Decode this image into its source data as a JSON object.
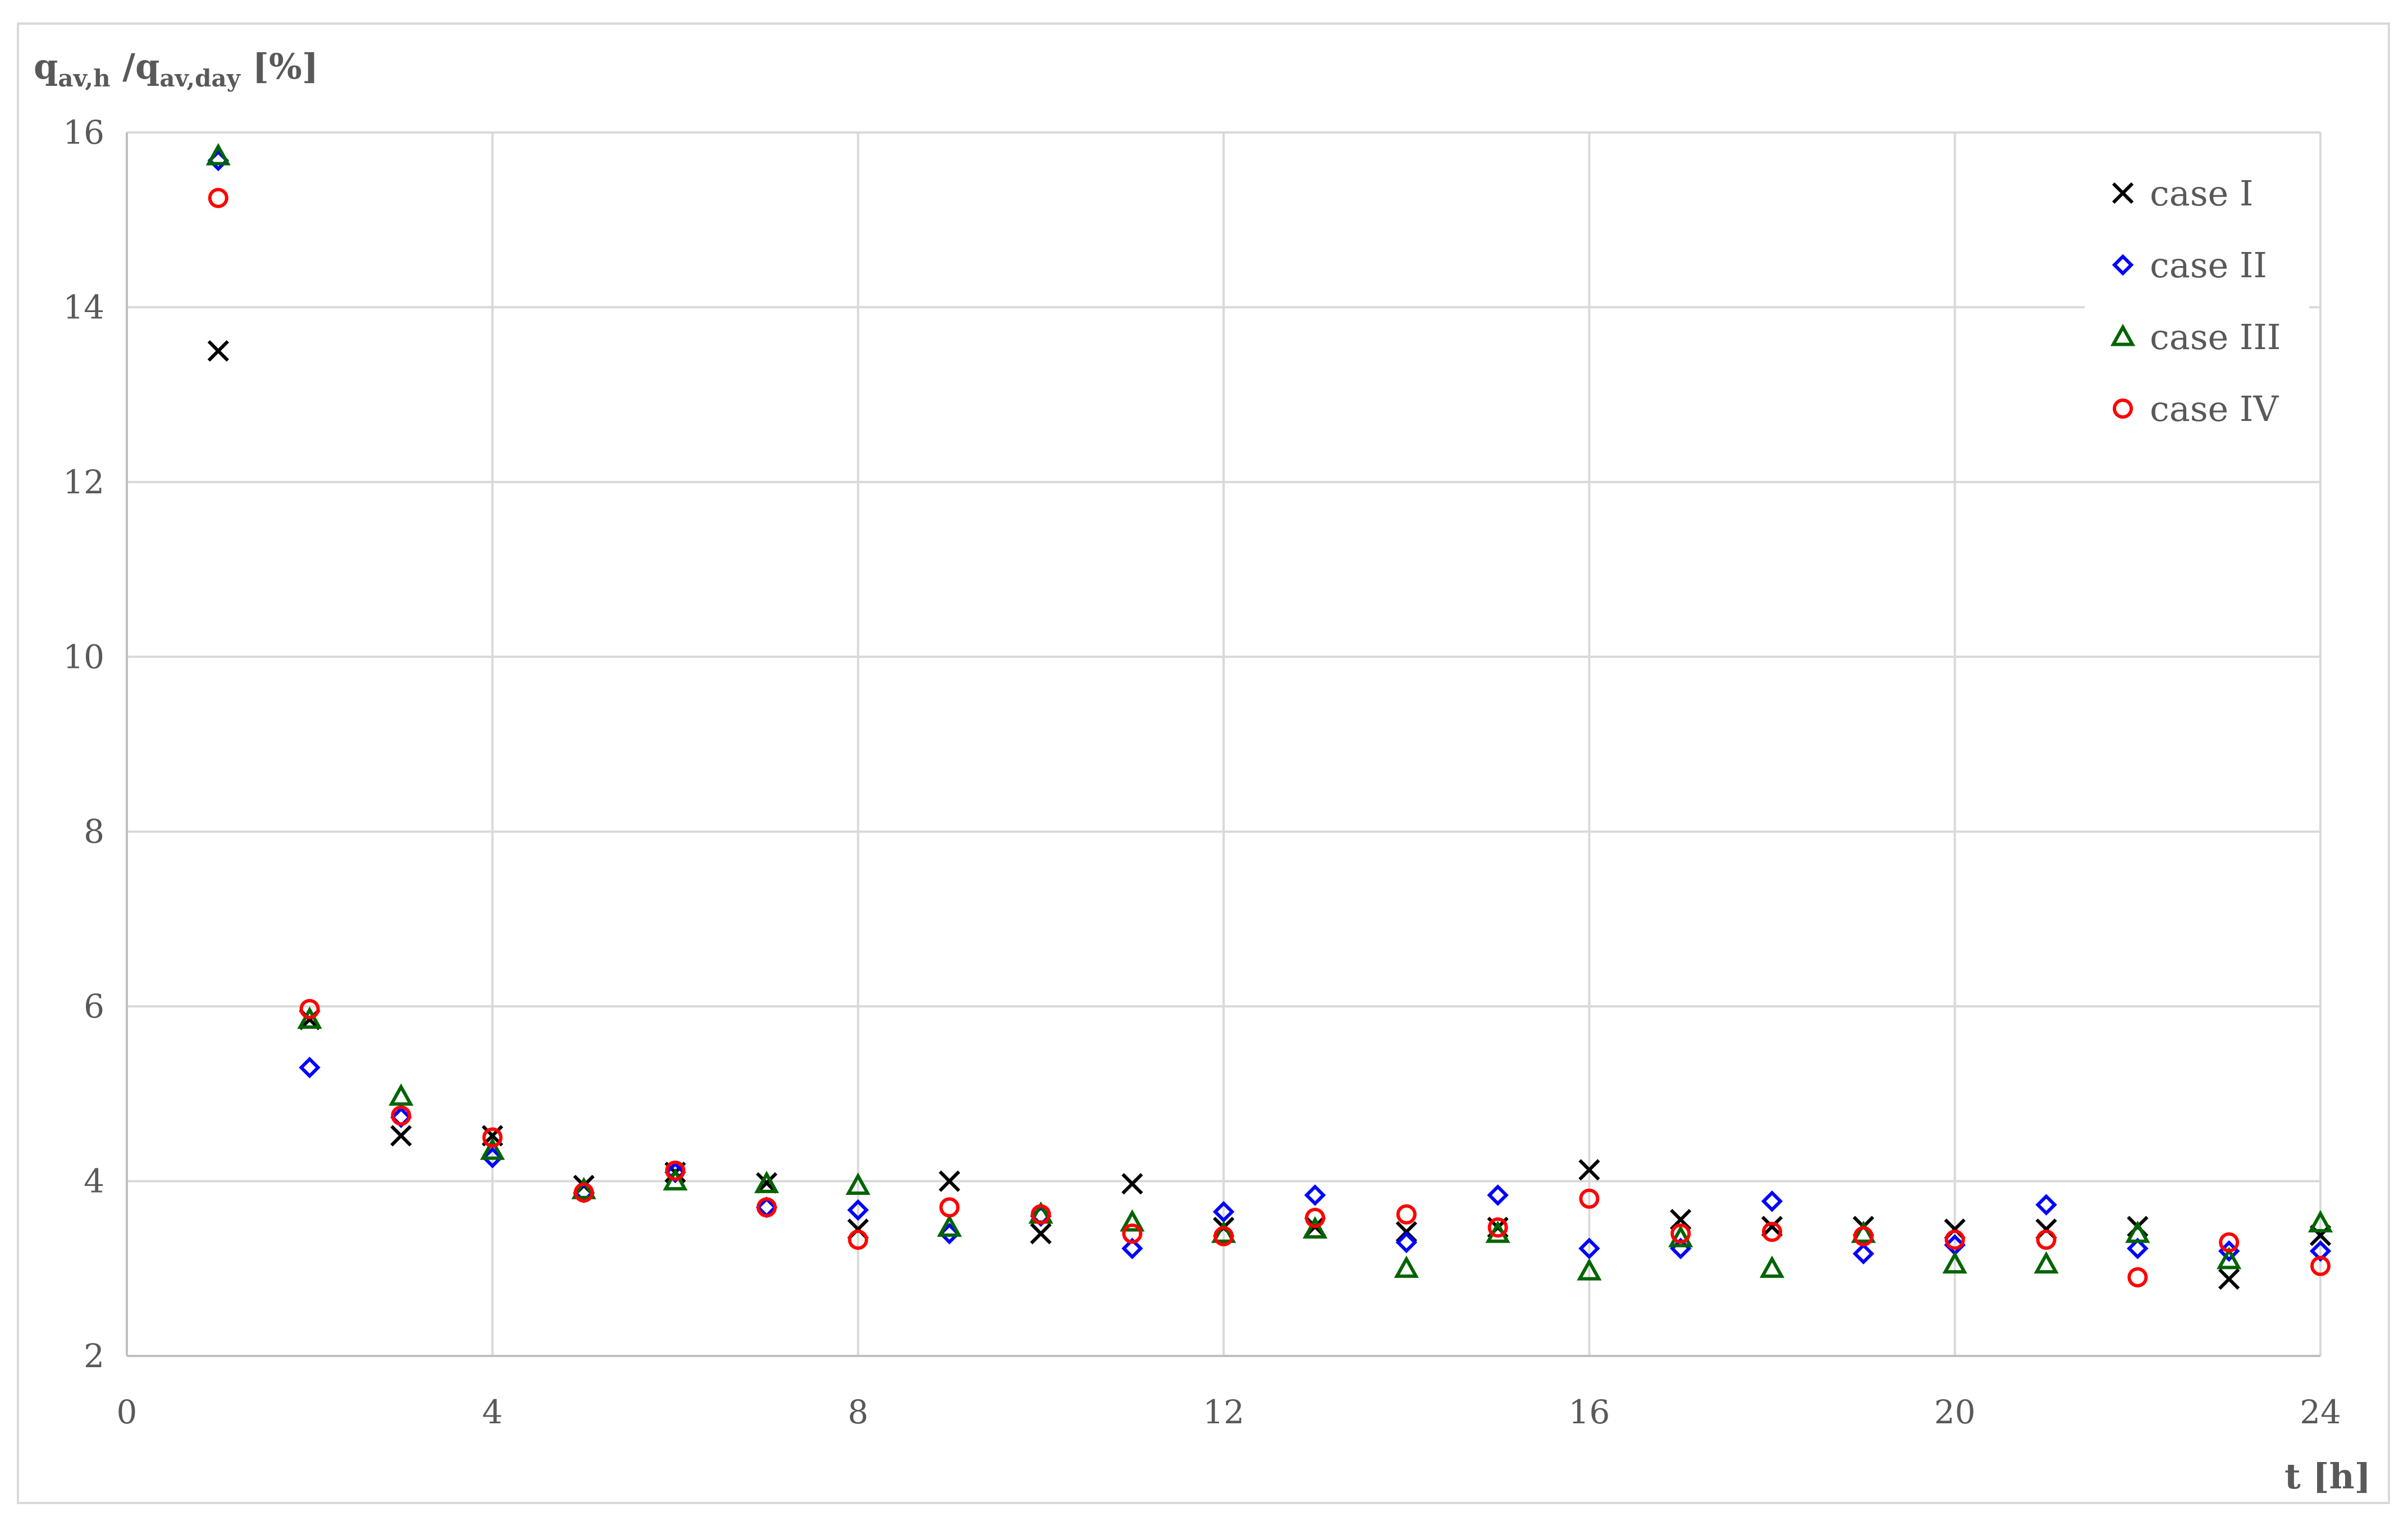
{
  "chart_data": {
    "type": "scatter",
    "ylabel": {
      "base1": "q",
      "sub1": "av,h",
      "middle": " /",
      "base2": "q",
      "sub2": "av,day",
      "tail": " [%]"
    },
    "xlabel": "t [h]",
    "xlim": [
      0,
      24
    ],
    "ylim": [
      2,
      16
    ],
    "x_ticks": [
      0,
      4,
      8,
      12,
      16,
      20,
      24
    ],
    "y_ticks": [
      2,
      4,
      6,
      8,
      10,
      12,
      14,
      16
    ],
    "grid": true,
    "legend_position": "top-right",
    "x": [
      1,
      2,
      3,
      4,
      5,
      6,
      7,
      8,
      9,
      10,
      11,
      12,
      13,
      14,
      15,
      16,
      17,
      18,
      19,
      20,
      21,
      22,
      23,
      24
    ],
    "series": [
      {
        "name": "case I",
        "marker": "x",
        "color": "#000000",
        "values": [
          13.5,
          5.85,
          4.52,
          4.52,
          3.95,
          4.1,
          3.98,
          3.45,
          4.0,
          3.4,
          3.97,
          3.47,
          3.48,
          3.42,
          3.47,
          4.13,
          3.56,
          3.48,
          3.48,
          3.45,
          3.45,
          3.48,
          2.88,
          3.38
        ]
      },
      {
        "name": "case II",
        "marker": "diamond",
        "color": "#0000ff",
        "values": [
          15.68,
          5.3,
          4.73,
          4.27,
          3.87,
          4.1,
          3.7,
          3.67,
          3.4,
          3.6,
          3.23,
          3.65,
          3.84,
          3.3,
          3.84,
          3.23,
          3.23,
          3.77,
          3.17,
          3.27,
          3.73,
          3.23,
          3.2,
          3.2
        ]
      },
      {
        "name": "case III",
        "marker": "triangle",
        "color": "#006400",
        "values": [
          15.73,
          5.85,
          4.97,
          4.35,
          3.9,
          4.0,
          3.97,
          3.95,
          3.47,
          3.62,
          3.53,
          3.4,
          3.45,
          3.0,
          3.4,
          2.97,
          3.35,
          3.0,
          3.4,
          3.05,
          3.05,
          3.4,
          3.1,
          3.52
        ]
      },
      {
        "name": "case IV",
        "marker": "circle",
        "color": "#ff0000",
        "values": [
          15.25,
          5.97,
          4.75,
          4.5,
          3.87,
          4.12,
          3.7,
          3.33,
          3.7,
          3.62,
          3.4,
          3.37,
          3.58,
          3.62,
          3.47,
          3.8,
          3.4,
          3.42,
          3.37,
          3.33,
          3.33,
          2.9,
          3.3,
          3.03
        ]
      }
    ]
  }
}
